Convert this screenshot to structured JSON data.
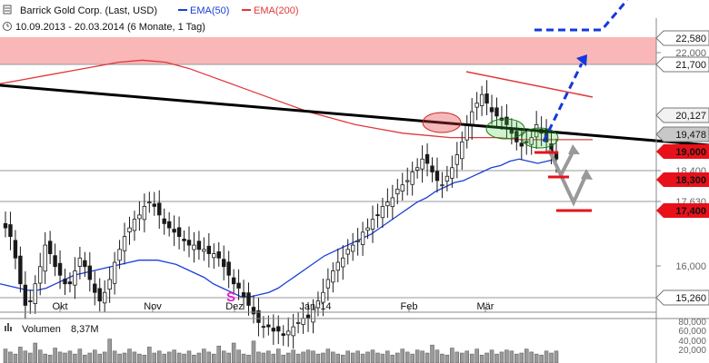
{
  "header": {
    "instrument": "Barrick Gold Corp. (Last, USD)",
    "ema50_label": "EMA(50)",
    "ema200_label": "EMA(200)",
    "period": "10.09.2013 - 20.03.2014 (6 Monate, 1 Tag)"
  },
  "colors": {
    "candle": "#1a1a1a",
    "ema50": "#1c3fd8",
    "ema200": "#e0383b",
    "resistance_zone": "#f9b7b7",
    "trendline": "#000000",
    "projection": "#1338e0",
    "target_marker": "#e8111a",
    "price_box_highlight": "#e8111a",
    "current_price_box": "#c8c8c8",
    "signal_marker": "#e81ccf",
    "volume_bar": "#9a9a9a"
  },
  "chart_data": {
    "type": "candlestick",
    "xlabel": "",
    "ylabel": "",
    "x_ticks": [
      "Okt",
      "Nov",
      "Dez",
      "Jan '14",
      "Feb",
      "Mär"
    ],
    "y_ticks": [
      {
        "value": 22580,
        "label": "22,580",
        "style": "boxed"
      },
      {
        "value": 22000,
        "label": "22,000",
        "style": "plain"
      },
      {
        "value": 21700,
        "label": "21,700",
        "style": "boxed"
      },
      {
        "value": 20127,
        "label": "20,127",
        "style": "boxed-gray"
      },
      {
        "value": 19478,
        "label": "19,478",
        "style": "current"
      },
      {
        "value": 19000,
        "label": "19,000",
        "style": "target"
      },
      {
        "value": 18400,
        "label": "18,400",
        "style": "plain"
      },
      {
        "value": 18300,
        "label": "18,300",
        "style": "target"
      },
      {
        "value": 17630,
        "label": "17,630",
        "style": "plain"
      },
      {
        "value": 17400,
        "label": "17,400",
        "style": "target"
      },
      {
        "value": 16000,
        "label": "16,000",
        "style": "plain"
      },
      {
        "value": 15260,
        "label": "15,260",
        "style": "boxed"
      }
    ],
    "horizontal_lines": [
      21700,
      18400,
      17630,
      15260
    ],
    "resistance_zone": [
      21700,
      22580
    ],
    "signal_label": "S",
    "close_series": [
      17.9,
      17.7,
      17.2,
      16.6,
      16.1,
      16.2,
      16.6,
      17.0,
      17.5,
      17.3,
      17.0,
      16.8,
      16.6,
      16.6,
      16.9,
      17.2,
      17.0,
      16.7,
      16.4,
      16.2,
      16.4,
      16.7,
      17.1,
      17.4,
      17.7,
      17.9,
      18.1,
      18.2,
      18.4,
      18.5,
      18.4,
      18.2,
      18.0,
      17.9,
      17.8,
      17.7,
      17.6,
      17.5,
      17.5,
      17.4,
      17.4,
      17.3,
      17.3,
      17.2,
      17.0,
      16.8,
      16.6,
      16.5,
      16.3,
      16.1,
      15.9,
      15.7,
      15.6,
      15.6,
      15.5,
      15.5,
      15.4,
      15.5,
      15.6,
      15.7,
      15.8,
      15.8,
      16.0,
      16.2,
      16.4,
      16.7,
      16.9,
      17.1,
      17.2,
      17.4,
      17.5,
      17.6,
      17.8,
      17.9,
      18.1,
      18.2,
      18.4,
      18.5,
      18.6,
      18.8,
      18.9,
      19.0,
      19.2,
      19.3,
      19.5,
      19.4,
      19.2,
      19.0,
      18.9,
      19.1,
      19.3,
      19.6,
      19.9,
      20.3,
      20.6,
      20.8,
      21.0,
      20.8,
      20.6,
      20.5,
      20.4,
      20.3,
      20.1,
      19.9,
      19.8,
      19.9,
      20.0,
      20.3,
      20.1,
      19.9,
      19.6,
      19.5
    ],
    "ema50": [
      16.6,
      16.55,
      16.5,
      16.45,
      16.45,
      16.5,
      16.6,
      16.7,
      16.8,
      16.85,
      16.9,
      16.95,
      17.0,
      17.05,
      17.1,
      17.15,
      17.15,
      17.15,
      17.1,
      17.05,
      16.95,
      16.85,
      16.75,
      16.6,
      16.5,
      16.4,
      16.3,
      16.3,
      16.35,
      16.4,
      16.5,
      16.65,
      16.8,
      16.95,
      17.1,
      17.25,
      17.35,
      17.45,
      17.55,
      17.65,
      17.75,
      17.9,
      18.05,
      18.2,
      18.35,
      18.5,
      18.6,
      18.75,
      18.85,
      18.95,
      19.0,
      19.1,
      19.2,
      19.3,
      19.35,
      19.45,
      19.5,
      19.45,
      19.4,
      19.45,
      19.5
    ],
    "ema200": [
      21.25,
      21.35,
      21.45,
      21.55,
      21.65,
      21.75,
      21.8,
      21.75,
      21.6,
      21.4,
      21.2,
      21.0,
      20.8,
      20.6,
      20.45,
      20.3,
      20.2,
      20.1,
      20.05,
      20.0,
      20.0,
      20.0,
      19.95,
      19.95,
      19.95,
      19.95
    ],
    "volume_y_ticks": [
      "80,000",
      "60,000",
      "40,000",
      "20,000"
    ],
    "volume_label": "Volumen",
    "volume_value": "8,37M",
    "volume_bars": [
      14,
      11,
      9,
      16,
      12,
      10,
      20,
      13,
      9,
      8,
      15,
      11,
      10,
      12,
      9,
      14,
      8,
      10,
      13,
      9,
      11,
      24,
      12,
      9,
      10,
      14,
      11,
      9,
      8,
      16,
      10,
      12,
      9,
      11,
      13,
      10,
      9,
      12,
      8,
      10,
      14,
      11,
      9,
      17,
      12,
      10,
      20,
      13,
      9,
      8,
      22,
      11,
      10,
      12,
      9,
      14,
      8,
      10,
      13,
      9,
      11,
      13,
      12,
      9,
      10,
      14,
      11,
      9,
      8,
      12,
      10,
      12,
      9,
      11,
      13,
      10,
      9,
      12,
      8,
      10,
      14,
      11,
      9,
      13,
      12,
      10,
      18,
      13,
      9,
      8,
      15,
      11,
      10,
      12,
      9,
      14,
      8,
      10,
      13,
      9,
      11,
      13,
      12,
      9,
      10,
      14,
      11,
      9,
      8,
      12,
      10,
      12
    ]
  }
}
